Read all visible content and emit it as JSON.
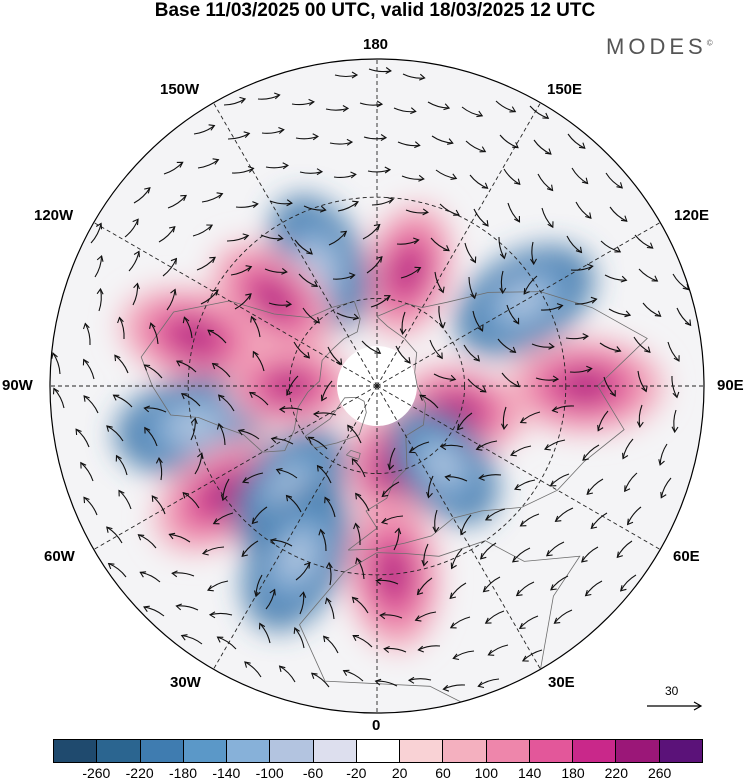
{
  "title": "Base 11/03/2025 00 UTC, valid 18/03/2025 12 UTC",
  "brand": {
    "name": "MODES",
    "mark": "©"
  },
  "map": {
    "projection": "north polar stereographic",
    "graticule_spacing_deg": 30,
    "longitude_labels": {
      "lon_180": "180",
      "lon_150w": "150W",
      "lon_150e": "150E",
      "lon_120w": "120W",
      "lon_120e": "120E",
      "lon_90w": "90W",
      "lon_90e": "90E",
      "lon_60w": "60W",
      "lon_60e": "60E",
      "lon_30w": "30W",
      "lon_30e": "30E",
      "lon_0": "0"
    },
    "vector_scale": "30",
    "colors": {
      "neutral": "#ffffff",
      "negative": [
        "#2b5c8a",
        "#3a73a5",
        "#5188bb",
        "#6f9fcb",
        "#97b8d9",
        "#bccbe3",
        "#dcdfed"
      ],
      "positive": [
        "#f8d5d9",
        "#f4b5c2",
        "#ee8fb0",
        "#e4649e",
        "#cf3b8e",
        "#a3237f",
        "#6a1473"
      ]
    },
    "anomaly_centers": [
      {
        "sign": "positive",
        "lon": 165,
        "lat": 50
      },
      {
        "sign": "negative",
        "lon": -155,
        "lat": 45
      },
      {
        "sign": "positive",
        "lon": -130,
        "lat": 45
      },
      {
        "sign": "negative",
        "lon": 120,
        "lat": 35
      },
      {
        "sign": "positive",
        "lon": -105,
        "lat": 30
      },
      {
        "sign": "positive",
        "lon": 90,
        "lat": 25
      },
      {
        "sign": "negative",
        "lon": -78,
        "lat": 30
      },
      {
        "sign": "positive",
        "lon": 75,
        "lat": 60
      },
      {
        "sign": "positive",
        "lon": -90,
        "lat": 60
      },
      {
        "sign": "positive",
        "lon": -55,
        "lat": 30
      },
      {
        "sign": "negative",
        "lon": -40,
        "lat": 45
      },
      {
        "sign": "negative",
        "lon": -25,
        "lat": 30
      },
      {
        "sign": "positive",
        "lon": 8,
        "lat": 60
      },
      {
        "sign": "negative",
        "lon": 40,
        "lat": 55
      },
      {
        "sign": "positive",
        "lon": 5,
        "lat": 30
      }
    ]
  },
  "colorbar": {
    "colors": [
      "#1f4a6e",
      "#2b6590",
      "#3f7cb0",
      "#5b98c8",
      "#87b1d9",
      "#b3c4e0",
      "#dddfee",
      "#ffffff",
      "#f9d2d5",
      "#f4b0bf",
      "#ee86ab",
      "#e3579a",
      "#c9288a",
      "#9b1778",
      "#5b1279"
    ],
    "labels": [
      "-260",
      "-220",
      "-180",
      "-140",
      "-100",
      "-60",
      "-20",
      "20",
      "60",
      "100",
      "140",
      "180",
      "220",
      "260"
    ]
  }
}
